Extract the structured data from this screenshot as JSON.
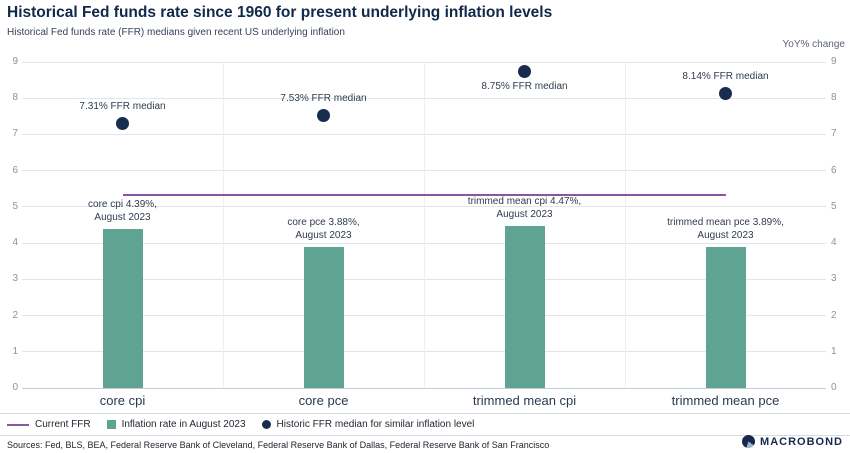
{
  "header": {
    "title": "Historical Fed funds rate since 1960 for present underlying inflation levels",
    "subtitle": "Historical Fed funds rate (FFR) medians given recent US underlying inflation"
  },
  "axis": {
    "right_label": "YoY% change",
    "ticks": [
      0,
      1,
      2,
      3,
      4,
      5,
      6,
      7,
      8,
      9
    ]
  },
  "chart_data": {
    "type": "bar",
    "categories": [
      "core cpi",
      "core pce",
      "trimmed mean cpi",
      "trimmed mean pce"
    ],
    "ylim": [
      0,
      9
    ],
    "series": [
      {
        "name": "Inflation rate in August 2023",
        "type": "bar",
        "values": [
          4.39,
          3.88,
          4.47,
          3.89
        ],
        "labels": [
          [
            "core cpi 4.39%,",
            "August 2023"
          ],
          [
            "core pce 3.88%,",
            "August 2023"
          ],
          [
            "trimmed mean cpi 4.47%,",
            "August 2023"
          ],
          [
            "trimmed mean pce 3.89%,",
            "August 2023"
          ]
        ],
        "color": "#5FA493"
      },
      {
        "name": "Historic FFR median for similar inflation level",
        "type": "scatter",
        "values": [
          7.31,
          7.53,
          8.75,
          8.14
        ],
        "labels": [
          "7.31% FFR median",
          "7.53% FFR median",
          "8.75% FFR median",
          "8.14% FFR median"
        ],
        "label_positions": [
          "above",
          "above",
          "below",
          "above"
        ],
        "color": "#182C4E"
      },
      {
        "name": "Current FFR",
        "type": "hline",
        "value": 5.33,
        "color": "#8C54A1"
      }
    ]
  },
  "legend": [
    {
      "label": "Current FFR",
      "marker": "line",
      "color": "#8C54A1"
    },
    {
      "label": "Inflation rate in August 2023",
      "marker": "square",
      "color": "#5FA493"
    },
    {
      "label": "Historic FFR median for similar inflation level",
      "marker": "dot",
      "color": "#182C4E"
    }
  ],
  "footer": {
    "sources": "Sources: Fed, BLS, BEA, Federal Reserve Bank of Cleveland, Federal Reserve Bank of Dallas, Federal Reserve Bank of San Francisco",
    "brand": "MACROBOND"
  }
}
